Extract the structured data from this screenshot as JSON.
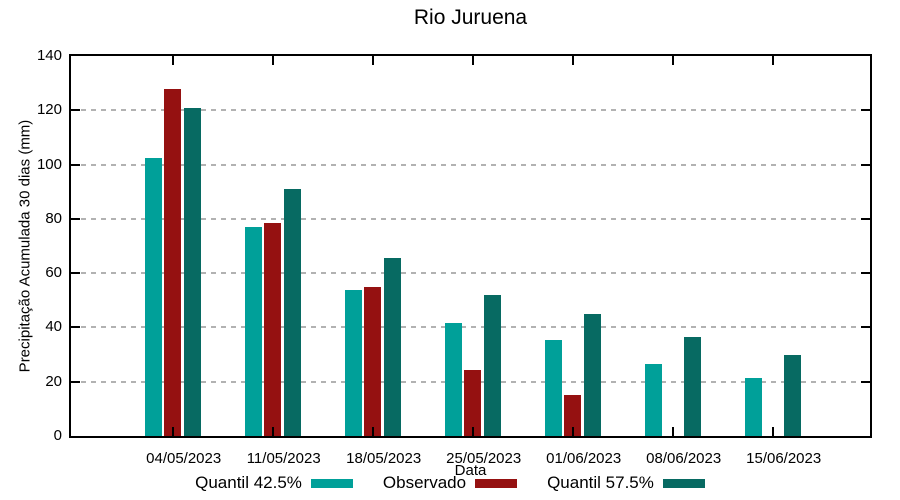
{
  "figure": {
    "title": "Rio Juruena"
  },
  "chart_data": {
    "type": "bar",
    "title": "Rio Juruena",
    "xlabel": "Data",
    "ylabel": "Precipitação Acumulada 30 dias (mm)",
    "categories": [
      "04/05/2023",
      "11/05/2023",
      "18/05/2023",
      "25/05/2023",
      "01/06/2023",
      "08/06/2023",
      "15/06/2023"
    ],
    "series": [
      {
        "name": "Quantil 42.5%",
        "color": "#00A099",
        "values": [
          102.5,
          77,
          53.8,
          41.5,
          35.5,
          26.5,
          21.5
        ]
      },
      {
        "name": "Observado",
        "color": "#951111",
        "values": [
          128,
          78.5,
          55,
          24.5,
          15,
          null,
          null
        ]
      },
      {
        "name": "Quantil 57.5%",
        "color": "#076A62",
        "values": [
          121,
          91,
          65.5,
          52,
          45,
          36.3,
          29.8
        ]
      }
    ],
    "ylim": [
      0,
      140
    ],
    "ytick_step": 20,
    "yticks": [
      0,
      20,
      40,
      60,
      80,
      100,
      120,
      140
    ],
    "grid": true,
    "grid_color": "#b2b2b2",
    "axis_color": "#000000",
    "legend_position": "bottom"
  }
}
